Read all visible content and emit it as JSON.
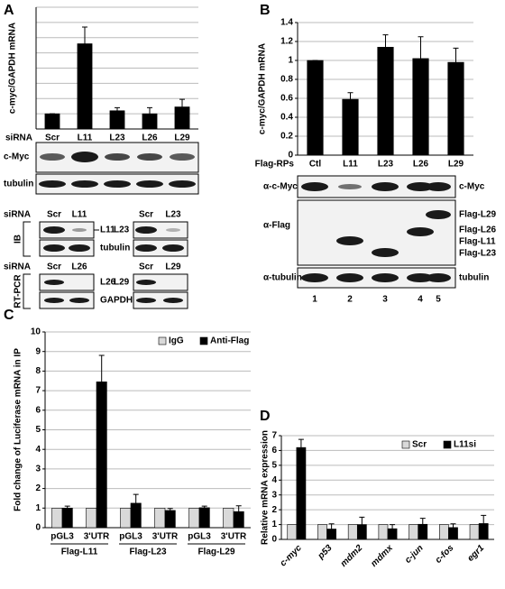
{
  "chart_data": [
    {
      "type": "bar",
      "panel": "A",
      "ylabel": "c-myc/GAPDH mRNA",
      "xlabel": "siRNA",
      "categories": [
        "Scr",
        "L11",
        "L23",
        "L26",
        "L29"
      ],
      "values": [
        1,
        5.6,
        1.2,
        1.0,
        1.45
      ],
      "errors": [
        0,
        1.1,
        0.2,
        0.4,
        0.5
      ],
      "color": "#000000",
      "ylim": [
        0,
        8
      ],
      "yticks": [
        0,
        1,
        2,
        3,
        4,
        5,
        6,
        7,
        8
      ],
      "grid": true,
      "tick_labels": false
    },
    {
      "type": "bar",
      "panel": "B",
      "ylabel": "c-myc/GAPDH mRNA",
      "xlabel": "Flag-RPs",
      "categories": [
        "Ctl",
        "L11",
        "L23",
        "L26",
        "L29"
      ],
      "values": [
        1,
        0.59,
        1.14,
        1.02,
        0.98
      ],
      "errors": [
        0,
        0.07,
        0.13,
        0.23,
        0.15
      ],
      "color": "#000000",
      "ylim": [
        0,
        1.4
      ],
      "yticks": [
        0,
        0.2,
        0.4,
        0.6,
        0.8,
        1,
        1.2,
        1.4
      ],
      "grid": true
    },
    {
      "type": "bar",
      "panel": "C",
      "ylabel": "Fold change of Luciferase mRNA in IP",
      "categories": [
        "pGL3",
        "3'UTR",
        "pGL3",
        "3'UTR",
        "pGL3",
        "3'UTR"
      ],
      "groups": [
        "Flag-L11",
        "Flag-L23",
        "Flag-L29"
      ],
      "series": [
        {
          "name": "IgG",
          "color": "#d9d9d9",
          "values": [
            1,
            1,
            1,
            1,
            1,
            1
          ]
        },
        {
          "name": "Anti-Flag",
          "color": "#000000",
          "values": [
            1,
            7.45,
            1.25,
            0.88,
            1.02,
            0.82
          ],
          "errors": [
            0.1,
            1.35,
            0.45,
            0.1,
            0.08,
            0.3
          ]
        }
      ],
      "ylim": [
        0,
        10
      ],
      "yticks": [
        0,
        1,
        2,
        3,
        4,
        5,
        6,
        7,
        8,
        9,
        10
      ],
      "grid": true,
      "legend": "upper right"
    },
    {
      "type": "bar",
      "panel": "D",
      "ylabel": "Relative mRNA expression",
      "categories": [
        "c-myc",
        "p53",
        "mdm2",
        "mdmx",
        "c-jun",
        "c-fos",
        "egr1"
      ],
      "series": [
        {
          "name": "Scr",
          "color": "#d9d9d9",
          "values": [
            1,
            1,
            1,
            1,
            1,
            1,
            1
          ]
        },
        {
          "name": "L11si",
          "color": "#000000",
          "values": [
            6.2,
            0.7,
            1.0,
            0.72,
            1.02,
            0.8,
            1.07
          ],
          "errors": [
            0.55,
            0.35,
            0.5,
            0.28,
            0.4,
            0.25,
            0.55
          ]
        }
      ],
      "ylim": [
        0,
        7
      ],
      "yticks": [
        0,
        1,
        2,
        3,
        4,
        5,
        6,
        7
      ],
      "grid": true,
      "legend": "upper right"
    }
  ],
  "blots": {
    "A": {
      "top_rows": [
        "c-Myc",
        "tubulin"
      ],
      "ib": {
        "method": "IB",
        "header_left": [
          "siRNA",
          "Scr",
          "L11"
        ],
        "header_right": [
          "Scr",
          "L23"
        ],
        "band_left": "L11",
        "band_right": "L23",
        "loading": "tubulin"
      },
      "rtpcr": {
        "method": "RT-PCR",
        "header_left": [
          "siRNA",
          "Scr",
          "L26"
        ],
        "header_right": [
          "Scr",
          "L29"
        ],
        "band_left": "L26",
        "band_right": "L29",
        "loading": "GAPDH"
      }
    },
    "B": {
      "left_rows": [
        "α-c-Myc",
        "α-Flag",
        "α-tubulin"
      ],
      "right_rows": [
        "c-Myc",
        "Flag-L29",
        "Flag-L26",
        "Flag-L11",
        "Flag-L23",
        "tubulin"
      ],
      "lanes": [
        "1",
        "2",
        "3",
        "4",
        "5"
      ]
    }
  }
}
